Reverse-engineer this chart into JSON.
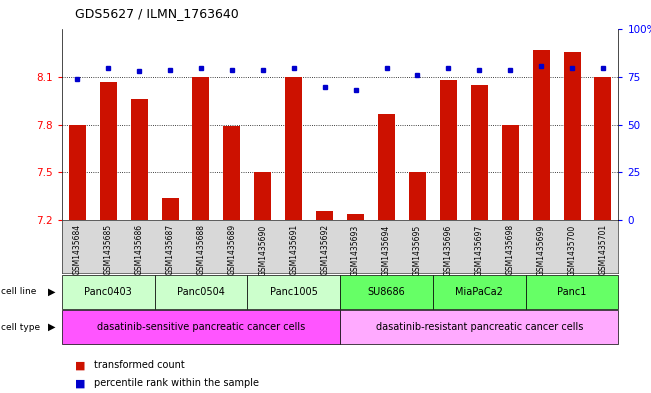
{
  "title": "GDS5627 / ILMN_1763640",
  "samples": [
    "GSM1435684",
    "GSM1435685",
    "GSM1435686",
    "GSM1435687",
    "GSM1435688",
    "GSM1435689",
    "GSM1435690",
    "GSM1435691",
    "GSM1435692",
    "GSM1435693",
    "GSM1435694",
    "GSM1435695",
    "GSM1435696",
    "GSM1435697",
    "GSM1435698",
    "GSM1435699",
    "GSM1435700",
    "GSM1435701"
  ],
  "transformed_counts": [
    7.8,
    8.07,
    7.96,
    7.34,
    8.1,
    7.79,
    7.5,
    8.1,
    7.26,
    7.24,
    7.87,
    7.5,
    8.08,
    8.05,
    7.8,
    8.27,
    8.26,
    8.1
  ],
  "percentile_ranks": [
    74,
    80,
    78,
    79,
    80,
    79,
    79,
    80,
    70,
    68,
    80,
    76,
    80,
    79,
    79,
    81,
    80,
    80
  ],
  "ylim_left": [
    7.2,
    8.4
  ],
  "ylim_right": [
    0,
    100
  ],
  "yticks_left": [
    7.2,
    7.5,
    7.8,
    8.1
  ],
  "yticks_right_ticks": [
    0,
    25,
    50,
    75,
    100
  ],
  "yticks_right_labels": [
    "0",
    "25",
    "50",
    "75",
    "100%"
  ],
  "cell_lines": [
    {
      "name": "Panc0403",
      "start": 0,
      "end": 2,
      "color": "#ccffcc"
    },
    {
      "name": "Panc0504",
      "start": 3,
      "end": 5,
      "color": "#ccffcc"
    },
    {
      "name": "Panc1005",
      "start": 6,
      "end": 8,
      "color": "#ccffcc"
    },
    {
      "name": "SU8686",
      "start": 9,
      "end": 11,
      "color": "#66ff66"
    },
    {
      "name": "MiaPaCa2",
      "start": 12,
      "end": 14,
      "color": "#66ff66"
    },
    {
      "name": "Panc1",
      "start": 15,
      "end": 17,
      "color": "#66ff66"
    }
  ],
  "cell_types": [
    {
      "name": "dasatinib-sensitive pancreatic cancer cells",
      "start": 0,
      "end": 8,
      "color": "#ff55ff"
    },
    {
      "name": "dasatinib-resistant pancreatic cancer cells",
      "start": 9,
      "end": 17,
      "color": "#ffaaff"
    }
  ],
  "bar_color": "#cc1100",
  "dot_color": "#0000cc",
  "bar_bottom": 7.2,
  "legend_items": [
    {
      "label": "transformed count",
      "color": "#cc1100"
    },
    {
      "label": "percentile rank within the sample",
      "color": "#0000cc"
    }
  ]
}
